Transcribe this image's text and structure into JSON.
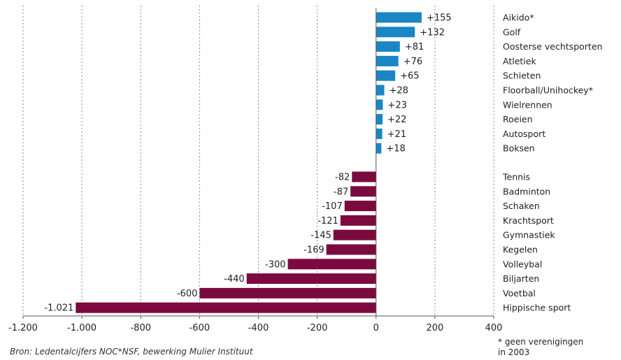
{
  "chart_data": {
    "type": "bar",
    "orientation": "horizontal",
    "xlim": [
      -1200,
      400
    ],
    "x_ticks": [
      -1200,
      -1000,
      -800,
      -600,
      -400,
      -200,
      0,
      200,
      400
    ],
    "x_tick_labels": [
      "-1.200",
      "-1.000",
      "-800",
      "-600",
      "-400",
      "-200",
      "0",
      "200",
      "400"
    ],
    "grid": "vertical dashed",
    "positive_color": "#1a86c4",
    "negative_color": "#7b0b3e",
    "groups": [
      {
        "categories": [
          "Aikido*",
          "Golf",
          "Oosterse vechtsporten",
          "Atletiek",
          "Schieten",
          "Floorball/Unihockey*",
          "Wielrennen",
          "Roeien",
          "Autosport",
          "Boksen"
        ],
        "values": [
          155,
          132,
          81,
          76,
          65,
          28,
          23,
          22,
          21,
          18
        ],
        "value_labels": [
          "+155",
          "+132",
          "+81",
          "+76",
          "+65",
          "+28",
          "+23",
          "+22",
          "+21",
          "+18"
        ]
      },
      {
        "categories": [
          "Tennis",
          "Badminton",
          "Schaken",
          "Krachtsport",
          "Gymnastiek",
          "Kegelen",
          "Volleybal",
          "Biljarten",
          "Voetbal",
          "Hippische sport"
        ],
        "values": [
          -82,
          -87,
          -107,
          -121,
          -145,
          -169,
          -300,
          -440,
          -600,
          -1021
        ],
        "value_labels": [
          "-82",
          "-87",
          "-107",
          "-121",
          "-145",
          "-169",
          "-300",
          "-440",
          "-600",
          "-1.021"
        ]
      }
    ]
  },
  "source": "Bron: Ledentalcijfers NOC*NSF, bewerking Mulier Instituut",
  "footnote": [
    "* geen verenigingen",
    "in 2003"
  ]
}
